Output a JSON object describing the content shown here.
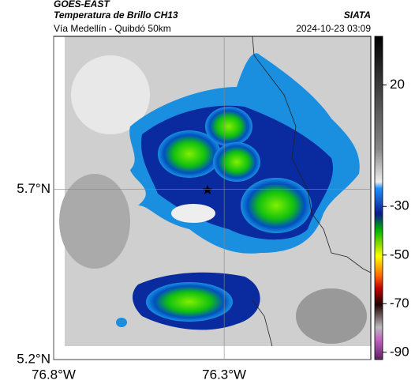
{
  "header": {
    "title": "GOES-EAST",
    "subtitle": "Temperatura de Brillo CH13",
    "source": "SIATA",
    "location": "Vía Medellín - Quibdó 50km",
    "datetime": "2024-10-23 03:09"
  },
  "map": {
    "ylim": [
      5.2,
      6.15
    ],
    "xlim": [
      -76.8,
      -75.87
    ],
    "yticks": [
      {
        "value": 5.7,
        "label": "5.7°N"
      },
      {
        "value": 5.2,
        "label": "5.2°N"
      }
    ],
    "xticks": [
      {
        "value": -76.8,
        "label": "76.8°W"
      },
      {
        "value": -76.3,
        "label": "76.3°W"
      }
    ]
  },
  "colorbar": {
    "lim": [
      -93,
      40
    ],
    "ticks": [
      20,
      -30,
      -50,
      -70,
      -90
    ]
  }
}
